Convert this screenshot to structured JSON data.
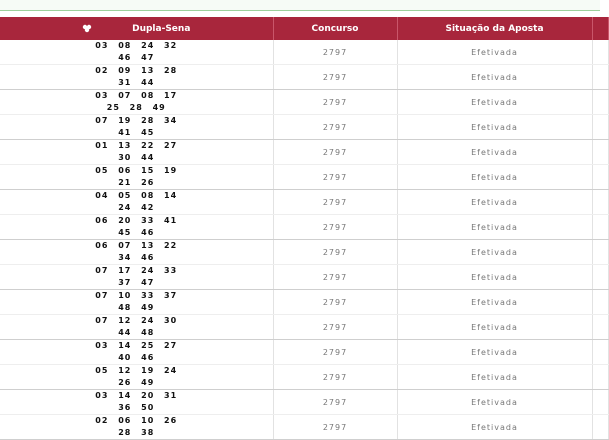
{
  "table": {
    "columns": [
      "Dupla-Sena",
      "Concurso",
      "Situação da Aposta"
    ],
    "rows": [
      [
        "03 08 24 32 46 47",
        "2797",
        "Efetivada"
      ],
      [
        "02 09 13 28 31 44",
        "2797",
        "Efetivada"
      ],
      [
        "03 07 08 17 25 28 49",
        "2797",
        "Efetivada"
      ],
      [
        "07 19 28 34 41 45",
        "2797",
        "Efetivada"
      ],
      [
        "01 13 22 27 30 44",
        "2797",
        "Efetivada"
      ],
      [
        "05 06 15 19 21 26",
        "2797",
        "Efetivada"
      ],
      [
        "04 05 08 14 24 42",
        "2797",
        "Efetivada"
      ],
      [
        "06 20 33 41 45 46",
        "2797",
        "Efetivada"
      ],
      [
        "06 07 13 22 34 46",
        "2797",
        "Efetivada"
      ],
      [
        "07 17 24 33 37 47",
        "2797",
        "Efetivada"
      ],
      [
        "07 10 33 37 48 49",
        "2797",
        "Efetivada"
      ],
      [
        "07 12 24 30 44 48",
        "2797",
        "Efetivada"
      ],
      [
        "03 14 25 27 40 46",
        "2797",
        "Efetivada"
      ],
      [
        "05 12 19 24 26 49",
        "2797",
        "Efetivada"
      ],
      [
        "03 14 20 31 36 50",
        "2797",
        "Efetivada"
      ],
      [
        "02 06 10 26 28 38",
        "2797",
        "Efetivada"
      ]
    ]
  }
}
